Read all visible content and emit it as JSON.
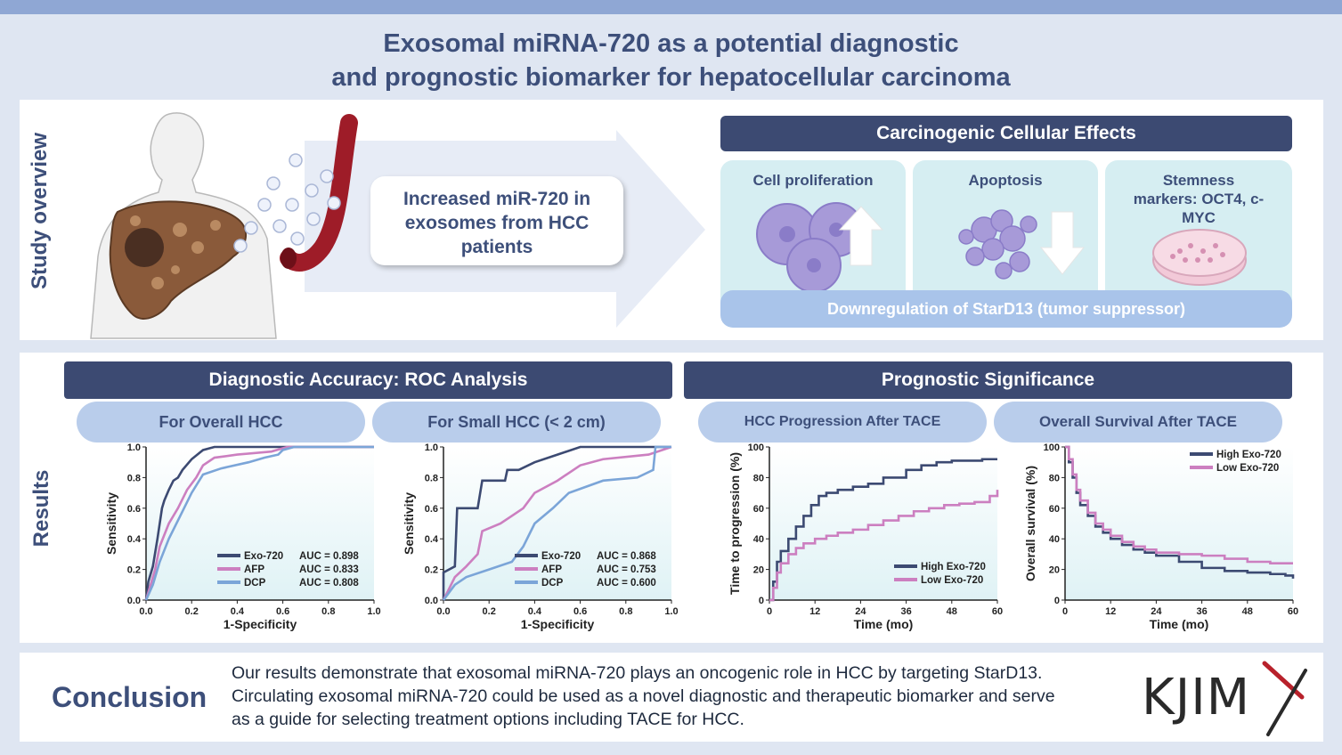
{
  "title": {
    "line1": "Exosomal miRNA-720 as a potential diagnostic",
    "line2": "and prognostic biomarker for hepatocellular carcinoma"
  },
  "overview": {
    "section_label": "Study overview",
    "bubble_text": "Increased miR-720 in exosomes from HCC patients",
    "effects_header": "Carcinogenic Cellular Effects",
    "cards": [
      {
        "label": "Cell proliferation"
      },
      {
        "label": "Apoptosis"
      },
      {
        "label": "Stemness markers: OCT4, c-MYC"
      }
    ],
    "downregulation": "Downregulation of StarD13 (tumor suppressor)"
  },
  "results": {
    "section_label": "Results",
    "diag_header": "Diagnostic Accuracy: ROC Analysis",
    "prog_header": "Prognostic Significance"
  },
  "conclusion": {
    "label": "Conclusion",
    "text": "Our results demonstrate that exosomal miRNA-720 plays an oncogenic role in HCC by targeting StarD13. Circulating exosomal miRNA-720 could be used as a novel diagnostic and therapeutic biomarker and serve as a guide for selecting treatment options including TACE for HCC.",
    "logo": "KJIM"
  },
  "colors": {
    "dark": "#3c4a72",
    "pink": "#cc7fc0",
    "blue": "#7ba5d8",
    "accent": "#b8212b"
  },
  "chart_data": [
    {
      "type": "line",
      "title": "For Overall HCC",
      "xlabel": "1-Specificity",
      "ylabel": "Sensitivity",
      "xlim": [
        0,
        1
      ],
      "ylim": [
        0,
        1
      ],
      "xticks": [
        "0.0",
        "0.2",
        "0.4",
        "0.6",
        "0.8",
        "1.0"
      ],
      "yticks": [
        "0.0",
        "0.2",
        "0.4",
        "0.6",
        "0.8",
        "1.0"
      ],
      "series": [
        {
          "name": "Exo-720",
          "auc": "AUC = 0.898",
          "color": "#3c4a72",
          "x": [
            0,
            0.01,
            0.03,
            0.05,
            0.07,
            0.08,
            0.1,
            0.12,
            0.14,
            0.16,
            0.2,
            0.25,
            0.3,
            0.6,
            1.0
          ],
          "y": [
            0,
            0.12,
            0.22,
            0.4,
            0.6,
            0.65,
            0.72,
            0.78,
            0.8,
            0.85,
            0.92,
            0.98,
            1.0,
            1.0,
            1.0
          ]
        },
        {
          "name": "AFP",
          "auc": "AUC = 0.833",
          "color": "#cc7fc0",
          "x": [
            0,
            0.02,
            0.04,
            0.06,
            0.1,
            0.14,
            0.18,
            0.22,
            0.25,
            0.3,
            0.4,
            0.55,
            0.62,
            1.0
          ],
          "y": [
            0,
            0.1,
            0.2,
            0.35,
            0.5,
            0.6,
            0.72,
            0.8,
            0.88,
            0.93,
            0.95,
            0.97,
            1.0,
            1.0
          ]
        },
        {
          "name": "DCP",
          "auc": "AUC = 0.808",
          "color": "#7ba5d8",
          "x": [
            0,
            0.03,
            0.06,
            0.1,
            0.15,
            0.2,
            0.25,
            0.33,
            0.45,
            0.52,
            0.58,
            0.6,
            0.65,
            1.0
          ],
          "y": [
            0,
            0.1,
            0.25,
            0.4,
            0.55,
            0.7,
            0.82,
            0.86,
            0.9,
            0.93,
            0.95,
            0.98,
            1.0,
            1.0
          ]
        }
      ]
    },
    {
      "type": "line",
      "title": "For Small HCC (< 2 cm)",
      "xlabel": "1-Specificity",
      "ylabel": "Sensitivity",
      "xlim": [
        0,
        1
      ],
      "ylim": [
        0,
        1
      ],
      "xticks": [
        "0.0",
        "0.2",
        "0.4",
        "0.6",
        "0.8",
        "1.0"
      ],
      "yticks": [
        "0.0",
        "0.2",
        "0.4",
        "0.6",
        "0.8",
        "1.0"
      ],
      "series": [
        {
          "name": "Exo-720",
          "auc": "AUC = 0.868",
          "color": "#3c4a72",
          "x": [
            0,
            0.0,
            0.05,
            0.06,
            0.15,
            0.17,
            0.27,
            0.28,
            0.33,
            0.4,
            0.5,
            0.6,
            0.7,
            1.0
          ],
          "y": [
            0,
            0.18,
            0.22,
            0.6,
            0.6,
            0.78,
            0.78,
            0.85,
            0.85,
            0.9,
            0.95,
            1.0,
            1.0,
            1.0
          ]
        },
        {
          "name": "AFP",
          "auc": "AUC = 0.753",
          "color": "#cc7fc0",
          "x": [
            0,
            0.05,
            0.1,
            0.15,
            0.17,
            0.25,
            0.3,
            0.35,
            0.4,
            0.5,
            0.6,
            0.7,
            0.9,
            1.0
          ],
          "y": [
            0,
            0.15,
            0.22,
            0.3,
            0.45,
            0.5,
            0.55,
            0.6,
            0.7,
            0.78,
            0.88,
            0.92,
            0.95,
            1.0
          ]
        },
        {
          "name": "DCP",
          "auc": "AUC = 0.600",
          "color": "#7ba5d8",
          "x": [
            0,
            0.05,
            0.1,
            0.2,
            0.3,
            0.35,
            0.4,
            0.48,
            0.55,
            0.7,
            0.85,
            0.92,
            0.93,
            1.0
          ],
          "y": [
            0,
            0.1,
            0.15,
            0.2,
            0.25,
            0.35,
            0.5,
            0.6,
            0.7,
            0.78,
            0.8,
            0.85,
            1.0,
            1.0
          ]
        }
      ]
    },
    {
      "type": "line",
      "title": "HCC Progression After TACE",
      "xlabel": "Time (mo)",
      "ylabel": "Time to progression (%)",
      "xlim": [
        0,
        60
      ],
      "ylim": [
        0,
        100
      ],
      "xticks": [
        "0",
        "12",
        "24",
        "36",
        "48",
        "60"
      ],
      "yticks": [
        "0",
        "20",
        "40",
        "60",
        "80",
        "100"
      ],
      "series": [
        {
          "name": "High Exo-720",
          "color": "#3c4a72",
          "x": [
            0,
            1,
            2,
            3,
            5,
            7,
            9,
            11,
            13,
            15,
            18,
            22,
            26,
            30,
            36,
            40,
            44,
            48,
            52,
            56,
            60
          ],
          "y": [
            0,
            12,
            25,
            32,
            40,
            48,
            55,
            62,
            68,
            70,
            72,
            74,
            76,
            80,
            85,
            88,
            90,
            91,
            91,
            92,
            92
          ]
        },
        {
          "name": "Low Exo-720",
          "color": "#cc7fc0",
          "x": [
            0,
            1,
            2,
            3,
            5,
            7,
            9,
            12,
            15,
            18,
            22,
            26,
            30,
            34,
            38,
            42,
            46,
            50,
            54,
            58,
            60
          ],
          "y": [
            0,
            8,
            18,
            24,
            30,
            34,
            37,
            40,
            42,
            44,
            46,
            49,
            52,
            55,
            58,
            60,
            62,
            63,
            64,
            68,
            72
          ]
        }
      ]
    },
    {
      "type": "line",
      "title": "Overall Survival After TACE",
      "xlabel": "Time (mo)",
      "ylabel": "Overall survival (%)",
      "xlim": [
        0,
        60
      ],
      "ylim": [
        0,
        100
      ],
      "xticks": [
        "0",
        "12",
        "24",
        "36",
        "48",
        "60"
      ],
      "yticks": [
        "0",
        "20",
        "40",
        "60",
        "80",
        "100"
      ],
      "series": [
        {
          "name": "High Exo-720",
          "color": "#3c4a72",
          "x": [
            0,
            1,
            2,
            3,
            4,
            6,
            8,
            10,
            12,
            15,
            18,
            21,
            24,
            30,
            36,
            42,
            48,
            54,
            58,
            60
          ],
          "y": [
            100,
            90,
            80,
            70,
            62,
            55,
            48,
            44,
            40,
            36,
            33,
            31,
            29,
            25,
            21,
            19,
            18,
            17,
            16,
            14
          ]
        },
        {
          "name": "Low Exo-720",
          "color": "#cc7fc0",
          "x": [
            0,
            1,
            2,
            3,
            4,
            6,
            8,
            10,
            12,
            15,
            18,
            21,
            24,
            30,
            36,
            42,
            48,
            54,
            60
          ],
          "y": [
            100,
            92,
            82,
            72,
            65,
            57,
            50,
            46,
            42,
            38,
            35,
            33,
            31,
            30,
            29,
            27,
            25,
            24,
            24
          ]
        }
      ]
    }
  ]
}
